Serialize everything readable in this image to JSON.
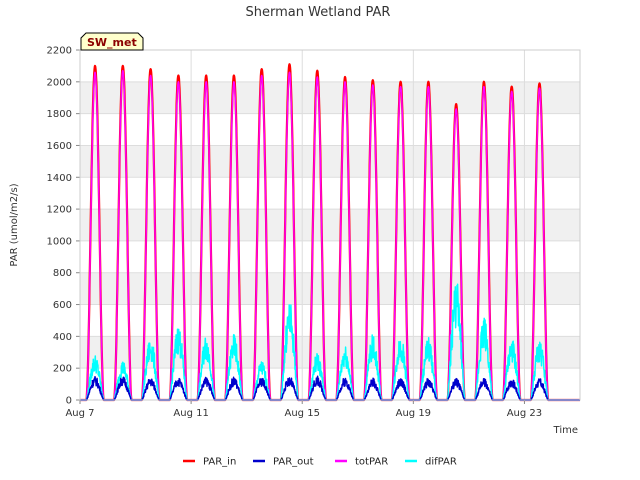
{
  "chart_data": {
    "type": "line",
    "title": "Sherman Wetland PAR",
    "xlabel": "Time",
    "ylabel": "PAR (umol/m2/s)",
    "ylim": [
      0,
      2200
    ],
    "yticks": [
      0,
      200,
      400,
      600,
      800,
      1000,
      1200,
      1400,
      1600,
      1800,
      2000,
      2200
    ],
    "xlim": [
      "2023-08-07",
      "2023-08-25"
    ],
    "xtick_labels": [
      "Aug 7",
      "Aug 11",
      "Aug 15",
      "Aug 19",
      "Aug 23"
    ],
    "xtick_dates": [
      "2023-08-07",
      "2023-08-11",
      "2023-08-15",
      "2023-08-19",
      "2023-08-23"
    ],
    "grid": true,
    "legend_position": "bottom",
    "badge": "SW_met",
    "series": [
      {
        "name": "PAR_in",
        "color": "#ff0000",
        "daily_peak_dates": [
          "2023-08-07",
          "2023-08-08",
          "2023-08-09",
          "2023-08-10",
          "2023-08-11",
          "2023-08-12",
          "2023-08-13",
          "2023-08-14",
          "2023-08-15",
          "2023-08-16",
          "2023-08-17",
          "2023-08-18",
          "2023-08-19",
          "2023-08-20",
          "2023-08-21",
          "2023-08-22",
          "2023-08-23",
          "2023-08-24"
        ],
        "daily_peaks": [
          2100,
          2100,
          2080,
          2040,
          2040,
          2040,
          2080,
          2110,
          2070,
          2030,
          2010,
          2000,
          2000,
          1860,
          2000,
          1970,
          1990,
          0
        ]
      },
      {
        "name": "PAR_out",
        "color": "#0000cc",
        "daily_peaks": [
          120,
          120,
          115,
          115,
          115,
          115,
          115,
          120,
          120,
          115,
          110,
          110,
          110,
          110,
          110,
          110,
          110,
          0
        ]
      },
      {
        "name": "totPAR",
        "color": "#ff00ff",
        "daily_peaks": [
          2060,
          2070,
          2040,
          2000,
          2000,
          2000,
          2040,
          2060,
          2030,
          2000,
          1980,
          1970,
          1970,
          1830,
          1970,
          1940,
          1960,
          0
        ]
      },
      {
        "name": "difPAR",
        "color": "#00ffff",
        "daily_peaks": [
          230,
          200,
          320,
          380,
          330,
          330,
          200,
          500,
          240,
          280,
          330,
          330,
          320,
          610,
          430,
          310,
          310,
          0
        ]
      }
    ]
  }
}
